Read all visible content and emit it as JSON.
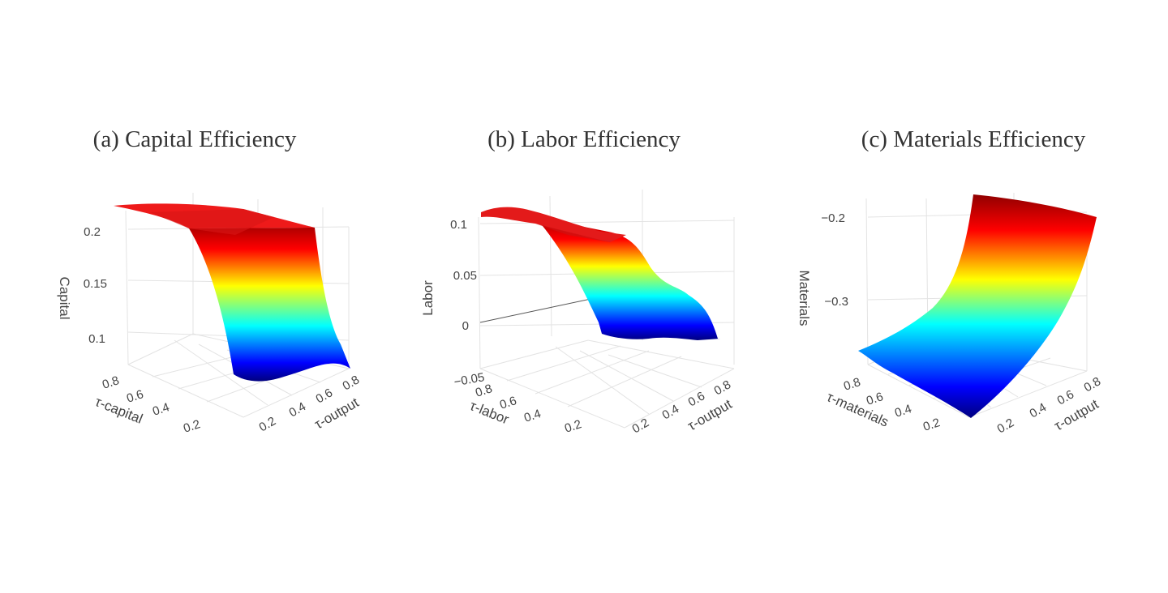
{
  "chart_data": [
    {
      "type": "surface3d",
      "title": "(a) Capital Efficiency",
      "xlabel": "τ-capital",
      "ylabel": "τ-output",
      "zlabel": "Capital",
      "x_ticks": [
        "0.8",
        "0.6",
        "0.4",
        "0.2"
      ],
      "y_ticks": [
        "0.2",
        "0.4",
        "0.6",
        "0.8"
      ],
      "z_ticks": [
        "0.2",
        "0.15",
        "0.1"
      ],
      "zrange": [
        0.085,
        0.222
      ],
      "colorscale": "jet",
      "tau_output": [
        0.1,
        0.2,
        0.3,
        0.4,
        0.5,
        0.6,
        0.7,
        0.8,
        0.9
      ],
      "surface_profile": [
        0.205,
        0.205,
        0.15,
        0.118,
        0.105,
        0.098,
        0.094,
        0.092,
        0.09
      ],
      "flat_top_value": 0.215
    },
    {
      "type": "surface3d",
      "title": "(b) Labor Efficiency",
      "xlabel": "τ-labor",
      "ylabel": "τ-output",
      "zlabel": "Labor",
      "x_ticks": [
        "0.8",
        "0.6",
        "0.4",
        "0.2"
      ],
      "y_ticks": [
        "0.2",
        "0.4",
        "0.6",
        "0.8"
      ],
      "z_ticks": [
        "0.1",
        "0.05",
        "0",
        "−0.05"
      ],
      "zrange": [
        -0.02,
        0.11
      ],
      "colorscale": "jet",
      "tau_output": [
        0.1,
        0.2,
        0.3,
        0.4,
        0.5,
        0.6,
        0.7,
        0.8,
        0.9
      ],
      "surface_profile": [
        0.105,
        0.1,
        0.085,
        0.065,
        0.045,
        0.03,
        0.015,
        0.0,
        -0.015
      ]
    },
    {
      "type": "surface3d",
      "title": "(c) Materials Efficiency",
      "xlabel": "τ-materials",
      "ylabel": "τ-output",
      "zlabel": "Materials",
      "x_ticks": [
        "0.8",
        "0.6",
        "0.4",
        "0.2"
      ],
      "y_ticks": [
        "0.2",
        "0.4",
        "0.6",
        "0.8"
      ],
      "z_ticks": [
        "−0.2",
        "−0.3"
      ],
      "zrange": [
        -0.42,
        -0.18
      ],
      "colorscale": "jet",
      "tau_output": [
        0.1,
        0.2,
        0.3,
        0.4,
        0.5,
        0.6,
        0.7,
        0.8,
        0.9
      ],
      "surface_profile": [
        -0.41,
        -0.39,
        -0.36,
        -0.33,
        -0.3,
        -0.27,
        -0.24,
        -0.21,
        -0.19
      ]
    }
  ],
  "colors": {
    "jet_stops": [
      "#00007f",
      "#0000ff",
      "#00ffff",
      "#ffff00",
      "#ff0000",
      "#7f0000"
    ],
    "grid": "#dddddd",
    "text": "#444444"
  }
}
